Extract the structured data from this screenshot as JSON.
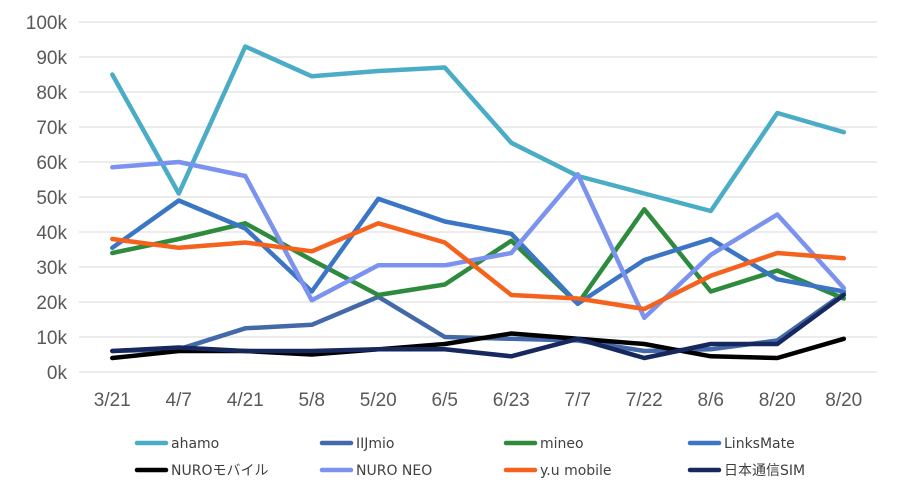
{
  "chart_data": {
    "type": "line",
    "categories": [
      "3/21",
      "4/7",
      "4/21",
      "5/8",
      "5/20",
      "6/5",
      "6/23",
      "7/7",
      "7/22",
      "8/6",
      "8/20",
      "8/20"
    ],
    "ylim": [
      0,
      100000
    ],
    "yticks": [
      {
        "value": 0,
        "label": "0k"
      },
      {
        "value": 10000,
        "label": "10k"
      },
      {
        "value": 20000,
        "label": "20k"
      },
      {
        "value": 30000,
        "label": "30k"
      },
      {
        "value": 40000,
        "label": "40k"
      },
      {
        "value": 50000,
        "label": "50k"
      },
      {
        "value": 60000,
        "label": "60k"
      },
      {
        "value": 70000,
        "label": "70k"
      },
      {
        "value": 80000,
        "label": "80k"
      },
      {
        "value": 90000,
        "label": "90k"
      },
      {
        "value": 100000,
        "label": "100k"
      }
    ],
    "grid": "horizontal",
    "legend_position": "bottom",
    "series": [
      {
        "name": "ahamo",
        "color": "#4bacc6",
        "values": [
          85000,
          51000,
          93000,
          84500,
          86000,
          87000,
          65500,
          56000,
          51000,
          46000,
          74000,
          68500
        ]
      },
      {
        "name": "IIJmio",
        "color": "#4469a8",
        "values": [
          6000,
          6500,
          12500,
          13500,
          21500,
          10000,
          9500,
          9000,
          6000,
          6500,
          9000,
          22500
        ]
      },
      {
        "name": "mineo",
        "color": "#2e8b3d",
        "values": [
          34000,
          38000,
          42500,
          32000,
          22000,
          25000,
          37500,
          19500,
          46500,
          23000,
          29000,
          21000
        ]
      },
      {
        "name": "LinksMate",
        "color": "#3b76c5",
        "values": [
          35500,
          49000,
          41000,
          23000,
          49500,
          43000,
          39500,
          19500,
          32000,
          38000,
          26500,
          23000
        ]
      },
      {
        "name": "NUROモバイル",
        "color": "#000000",
        "values": [
          4000,
          6000,
          6000,
          5000,
          6500,
          8000,
          11000,
          9500,
          8000,
          4500,
          4000,
          9500
        ]
      },
      {
        "name": "NURO NEO",
        "color": "#7b93ee",
        "values": [
          58500,
          60000,
          56000,
          20500,
          30500,
          30500,
          34000,
          56500,
          15500,
          33500,
          45000,
          24000
        ]
      },
      {
        "name": "y.u mobile",
        "color": "#f5621e",
        "values": [
          38000,
          35500,
          37000,
          34500,
          42500,
          37000,
          22000,
          21000,
          18000,
          27500,
          34000,
          32500
        ]
      },
      {
        "name": "日本通信SIM",
        "color": "#16285e",
        "values": [
          6000,
          7000,
          6000,
          6000,
          6500,
          6500,
          4500,
          9500,
          4000,
          8000,
          8000,
          22000
        ]
      }
    ]
  }
}
